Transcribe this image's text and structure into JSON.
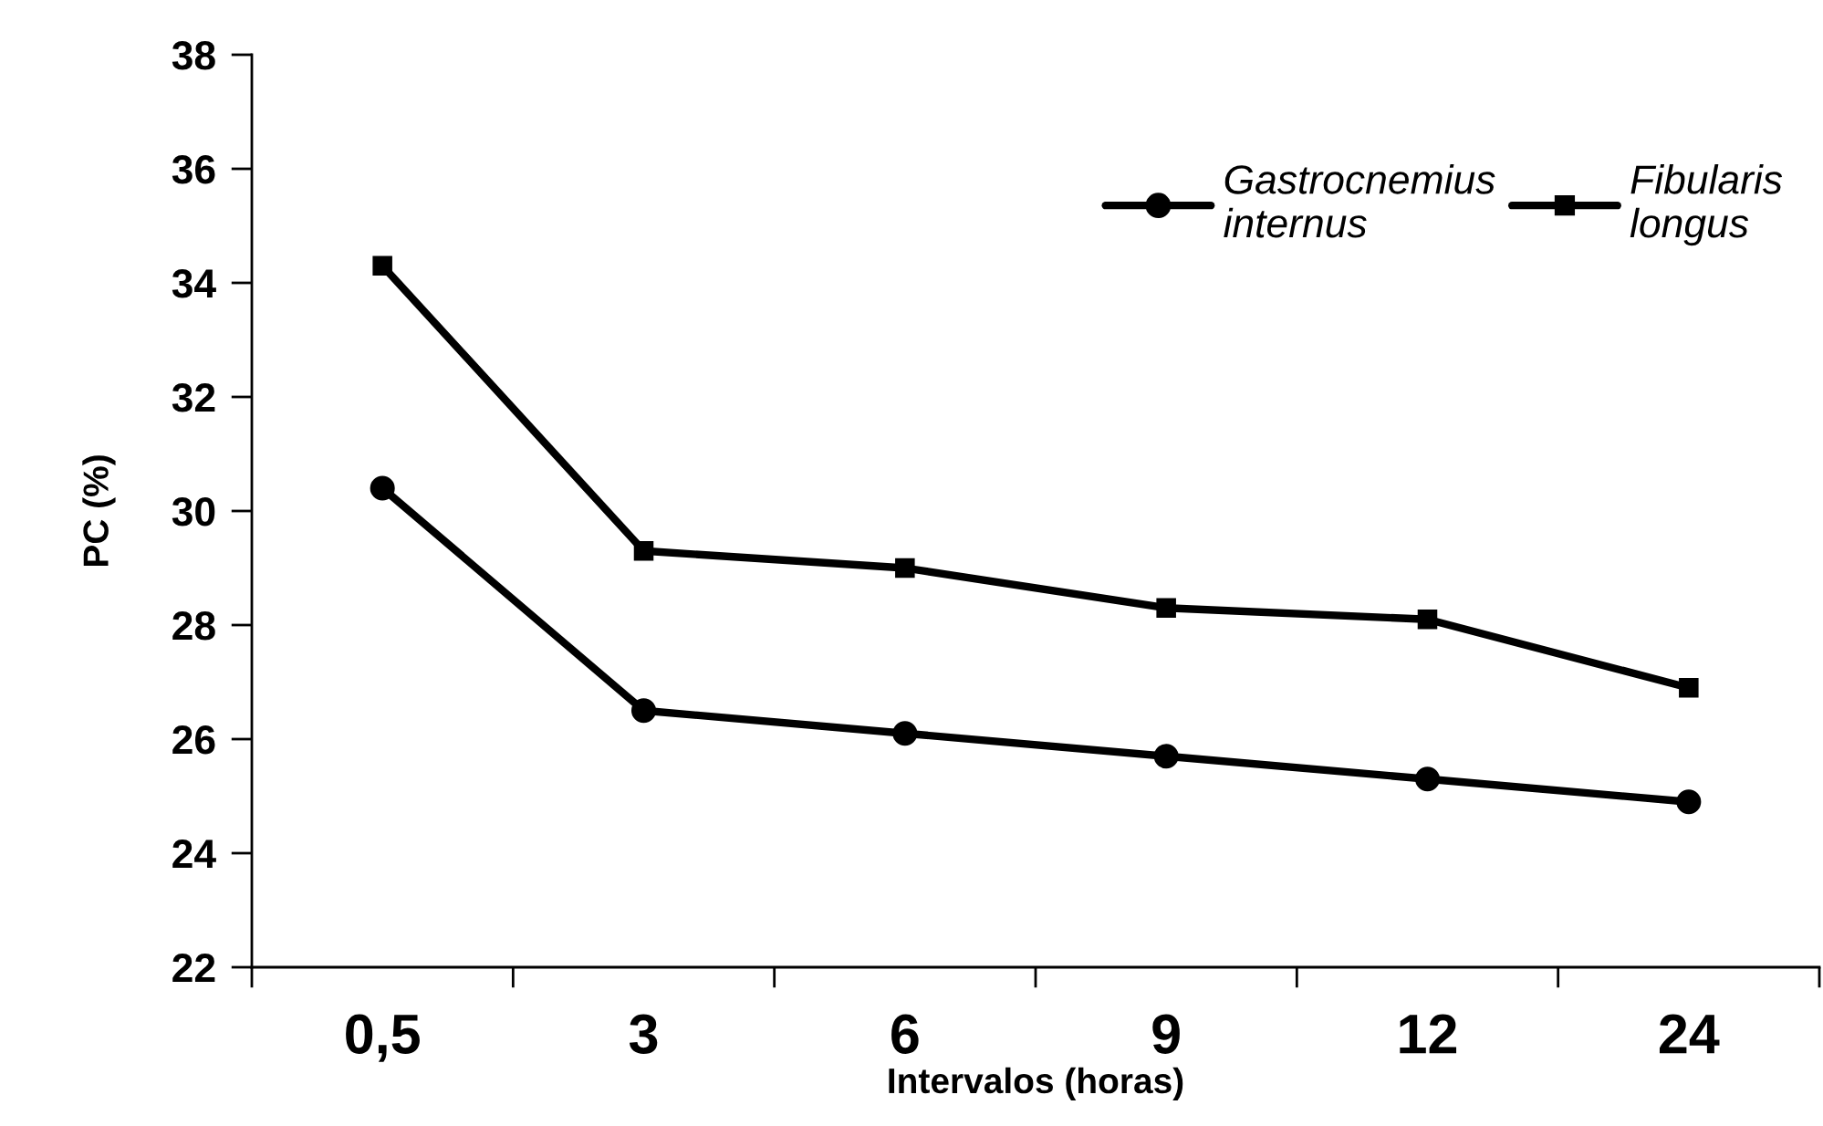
{
  "chart_data": {
    "type": "line",
    "xlabel": "Intervalos (horas)",
    "ylabel": "PC (%)",
    "categories": [
      "0,5",
      "3",
      "6",
      "9",
      "12",
      "24"
    ],
    "series": [
      {
        "name": "Gastrocnemius\ninternus",
        "color": "#000000",
        "marker": "circle",
        "values": [
          30.4,
          26.5,
          26.1,
          25.7,
          25.3,
          24.9
        ]
      },
      {
        "name": "Fibularis\nlongus",
        "color": "#000000",
        "marker": "square",
        "values": [
          34.3,
          29.3,
          29.0,
          28.3,
          28.1,
          26.9
        ]
      }
    ],
    "ylim": [
      22,
      38
    ],
    "yticks": [
      22,
      24,
      26,
      28,
      30,
      32,
      34,
      36,
      38
    ],
    "grid": false,
    "legend": "top right",
    "line_style": "solid"
  }
}
